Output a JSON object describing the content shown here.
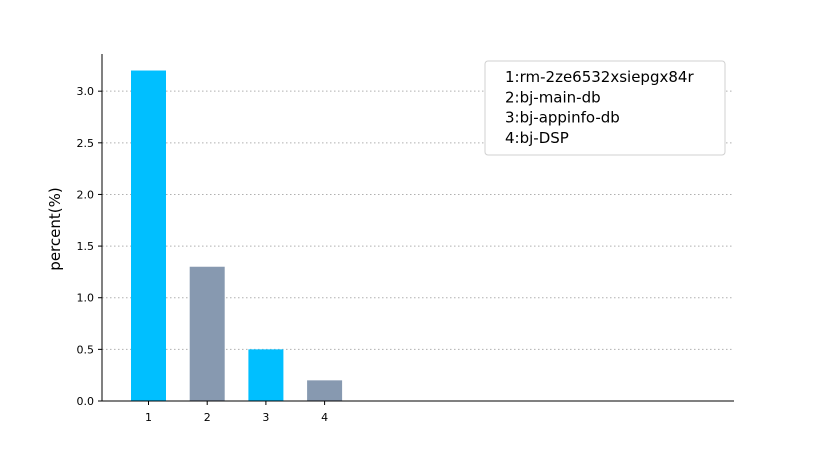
{
  "chart_data": {
    "type": "bar",
    "categories": [
      "1",
      "2",
      "3",
      "4"
    ],
    "values": [
      3.2,
      1.3,
      0.5,
      0.2
    ],
    "title": "",
    "xlabel": "",
    "ylabel": "percent(%)",
    "ylim": [
      0,
      3.36
    ],
    "yticks": [
      "0.0",
      "0.5",
      "1.0",
      "1.5",
      "2.0",
      "2.5",
      "3.0"
    ],
    "grid": "horizontal-dotted",
    "legend_position": "top-right",
    "legend_entries": [
      "1:rm-2ze6532xsiepgx84r",
      "2:bj-main-db",
      "3:bj-appinfo-db",
      "4:bj-DSP"
    ],
    "colors": [
      "#00bfff",
      "#8799b0",
      "#00bfff",
      "#8799b0"
    ],
    "grid_color": "#b0b0b0"
  }
}
